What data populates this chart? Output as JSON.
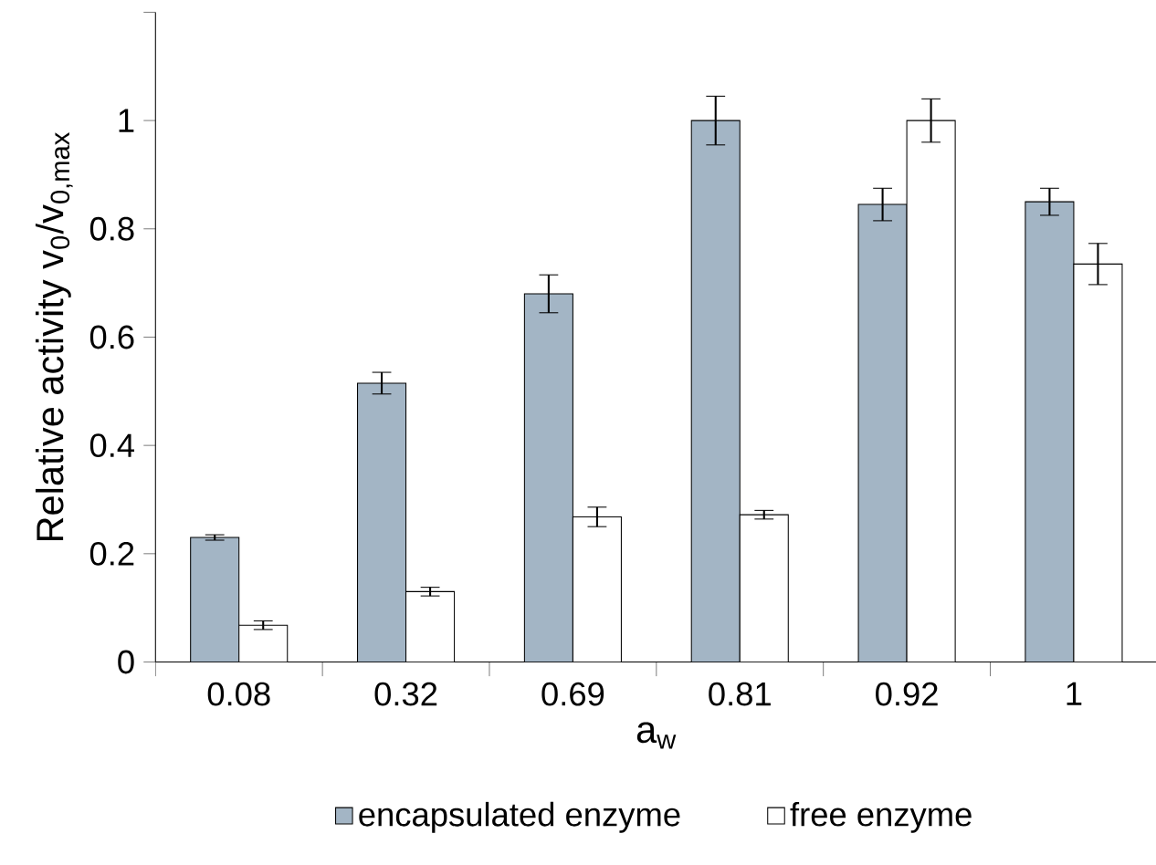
{
  "chart_data": {
    "type": "bar",
    "xlabel": "a$_{w}$",
    "ylabel": "Relative activity v$_{0}$/v$_{0,max}$",
    "categories": [
      "0.08",
      "0.32",
      "0.69",
      "0.81",
      "0.92",
      "1"
    ],
    "series": [
      {
        "name": "encapsulated enzyme",
        "color": "#a3b5c5",
        "values": [
          0.23,
          0.515,
          0.68,
          1.0,
          0.845,
          0.85
        ],
        "errors": [
          0.005,
          0.02,
          0.035,
          0.045,
          0.03,
          0.025
        ]
      },
      {
        "name": "free enzyme",
        "color": "#ffffff",
        "values": [
          0.068,
          0.13,
          0.268,
          0.272,
          1.0,
          0.735
        ],
        "errors": [
          0.008,
          0.008,
          0.018,
          0.008,
          0.04,
          0.038
        ]
      }
    ],
    "ylim": [
      0,
      1.2
    ],
    "yticks": [
      0,
      0.2,
      0.4,
      0.6,
      0.8,
      1,
      {
        "value": 1.2,
        "label": null
      }
    ],
    "grid": false,
    "legend": "bottom"
  }
}
